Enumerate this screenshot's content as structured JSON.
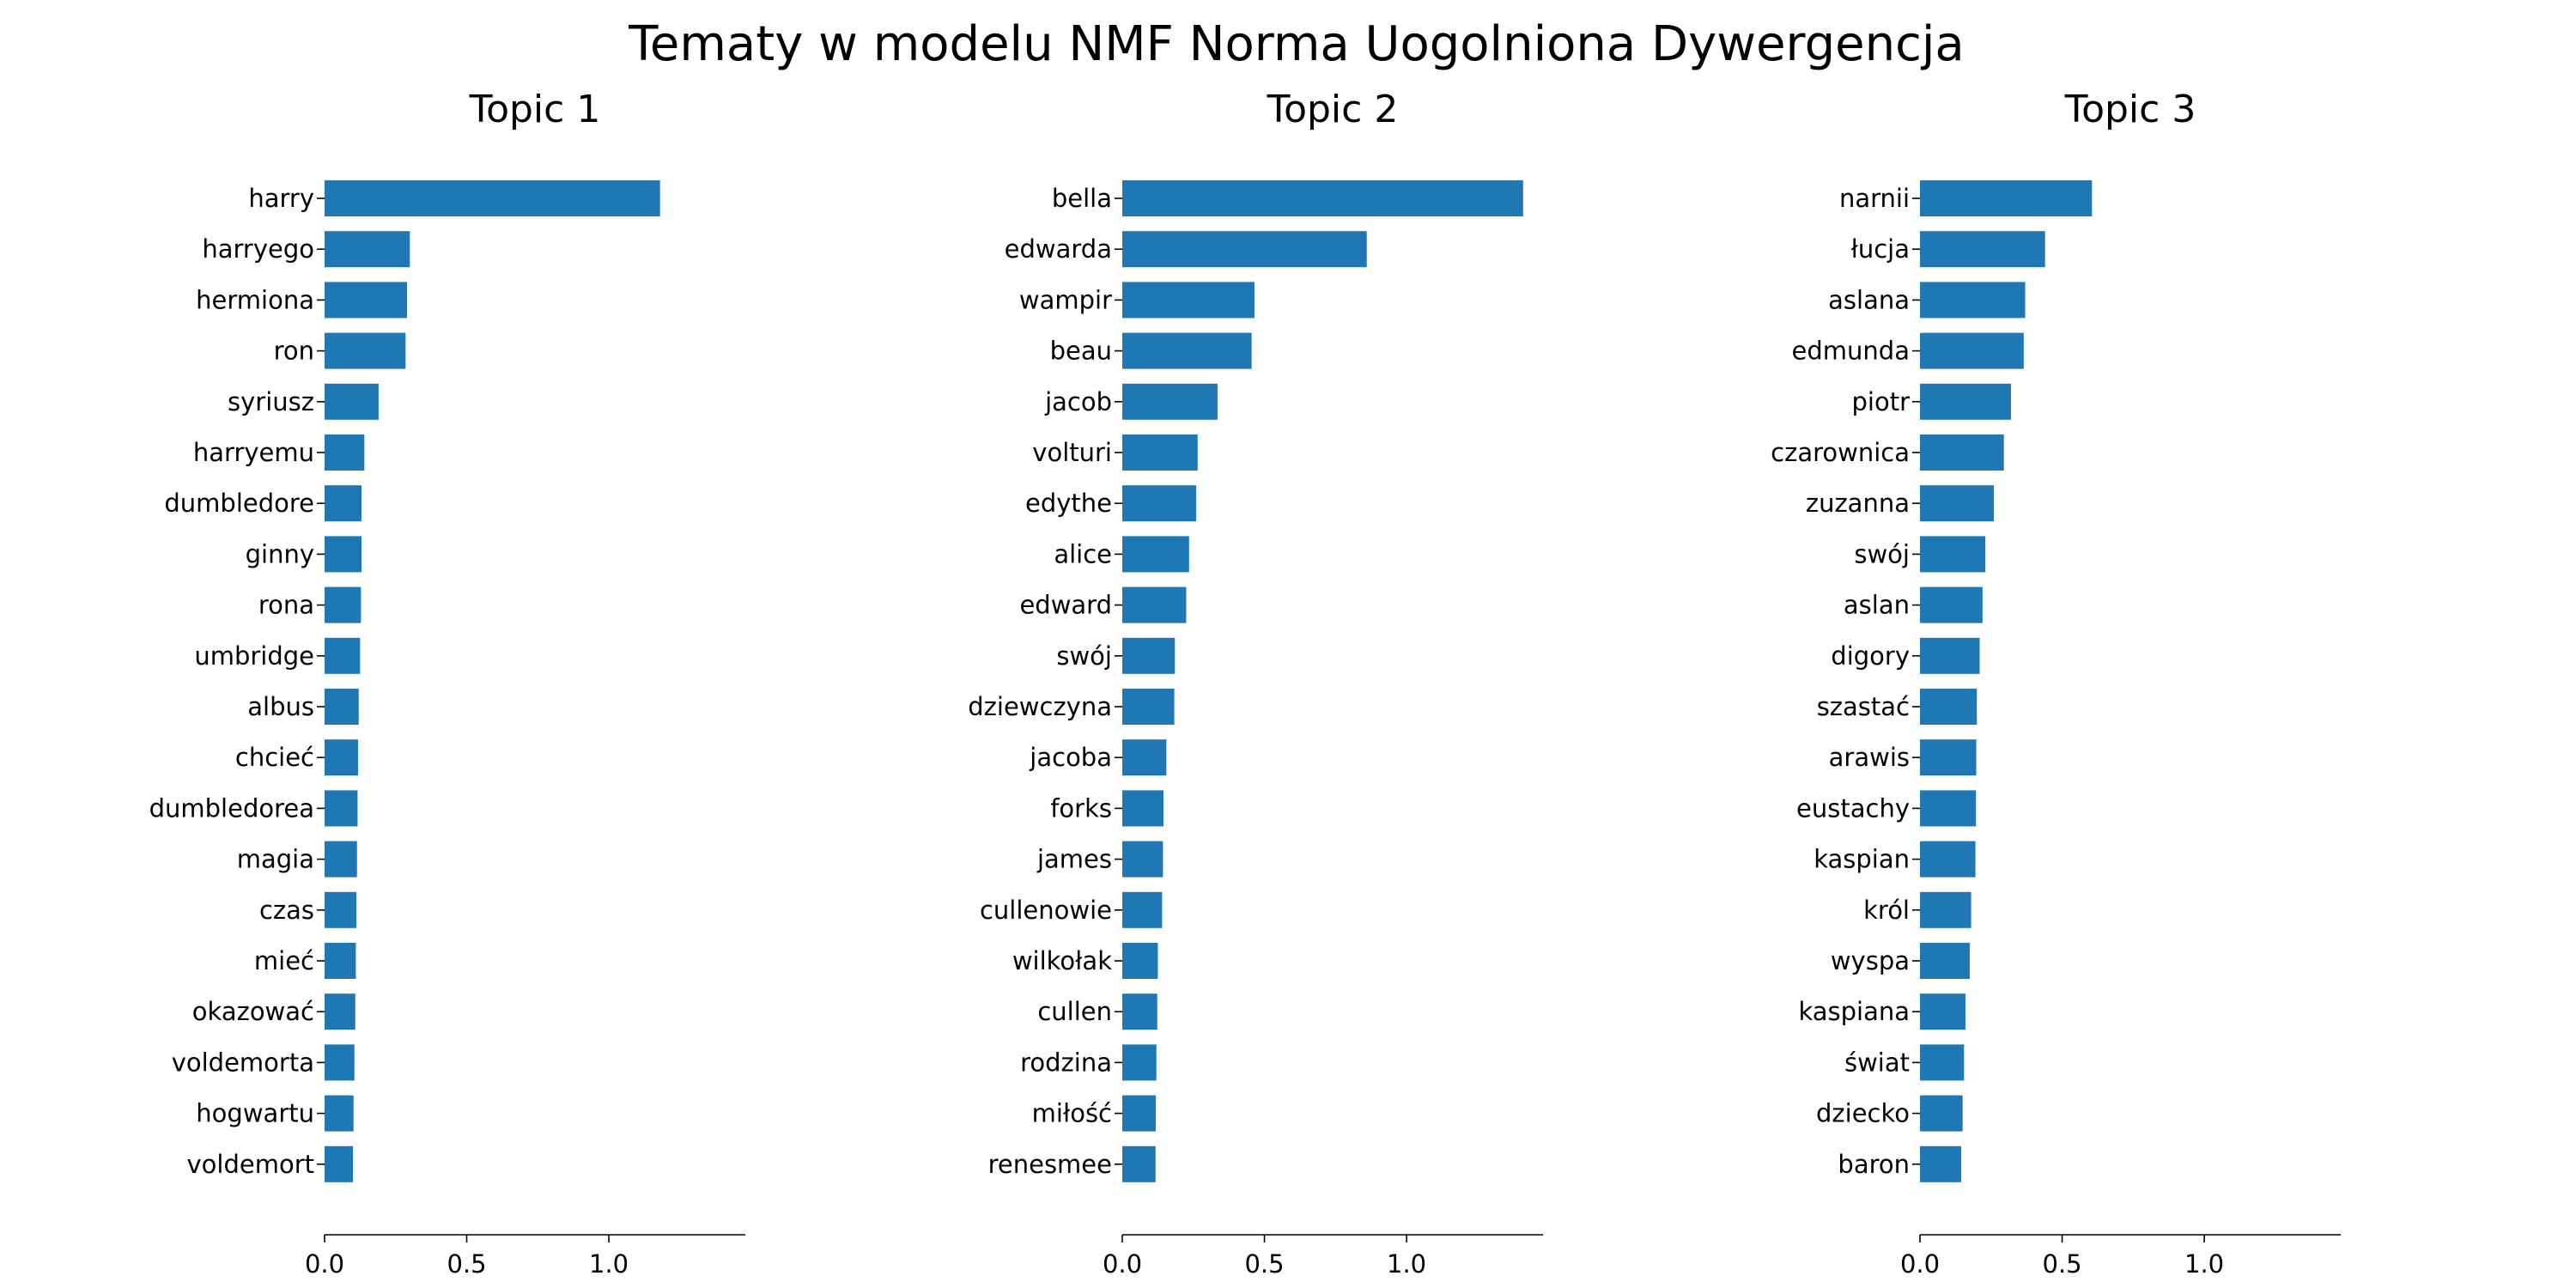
{
  "figure": {
    "suptitle": "Tematy w modelu NMF Norma Uogolniona Dywergencja"
  },
  "chart_data": [
    {
      "type": "bar",
      "orientation": "horizontal",
      "title": "Topic 1",
      "color": "#1f77b4",
      "xlim": [
        0,
        1.48
      ],
      "xticks": [
        0.0,
        0.5,
        1.0
      ],
      "xtick_labels": [
        "0.0",
        "0.5",
        "1.0"
      ],
      "categories": [
        "harry",
        "harryego",
        "hermiona",
        "ron",
        "syriusz",
        "harryemu",
        "dumbledore",
        "ginny",
        "rona",
        "umbridge",
        "albus",
        "chcieć",
        "dumbledorea",
        "magia",
        "czas",
        "mieć",
        "okazować",
        "voldemorta",
        "hogwartu",
        "voldemort"
      ],
      "values": [
        1.18,
        0.3,
        0.29,
        0.285,
        0.19,
        0.14,
        0.13,
        0.13,
        0.128,
        0.125,
        0.12,
        0.118,
        0.116,
        0.114,
        0.112,
        0.11,
        0.108,
        0.105,
        0.102,
        0.1
      ]
    },
    {
      "type": "bar",
      "orientation": "horizontal",
      "title": "Topic 2",
      "color": "#1f77b4",
      "xlim": [
        0,
        1.48
      ],
      "xticks": [
        0.0,
        0.5,
        1.0
      ],
      "xtick_labels": [
        "0.0",
        "0.5",
        "1.0"
      ],
      "categories": [
        "bella",
        "edwarda",
        "wampir",
        "beau",
        "jacob",
        "volturi",
        "edythe",
        "alice",
        "edward",
        "swój",
        "dziewczyna",
        "jacoba",
        "forks",
        "james",
        "cullenowie",
        "wilkołak",
        "cullen",
        "rodzina",
        "miłość",
        "renesmee"
      ],
      "values": [
        1.41,
        0.86,
        0.465,
        0.455,
        0.335,
        0.265,
        0.26,
        0.235,
        0.225,
        0.185,
        0.183,
        0.155,
        0.145,
        0.143,
        0.14,
        0.125,
        0.123,
        0.12,
        0.118,
        0.117
      ]
    },
    {
      "type": "bar",
      "orientation": "horizontal",
      "title": "Topic 3",
      "color": "#1f77b4",
      "xlim": [
        0,
        1.48
      ],
      "xticks": [
        0.0,
        0.5,
        1.0
      ],
      "xtick_labels": [
        "0.0",
        "0.5",
        "1.0"
      ],
      "categories": [
        "narnii",
        "łucja",
        "aslana",
        "edmunda",
        "piotr",
        "czarownica",
        "zuzanna",
        "swój",
        "aslan",
        "digory",
        "szastać",
        "arawis",
        "eustachy",
        "kaspian",
        "król",
        "wyspa",
        "kaspiana",
        "świat",
        "dziecko",
        "baron"
      ],
      "values": [
        0.605,
        0.44,
        0.37,
        0.365,
        0.32,
        0.295,
        0.26,
        0.23,
        0.22,
        0.21,
        0.2,
        0.198,
        0.197,
        0.195,
        0.18,
        0.175,
        0.16,
        0.155,
        0.15,
        0.145
      ]
    }
  ]
}
